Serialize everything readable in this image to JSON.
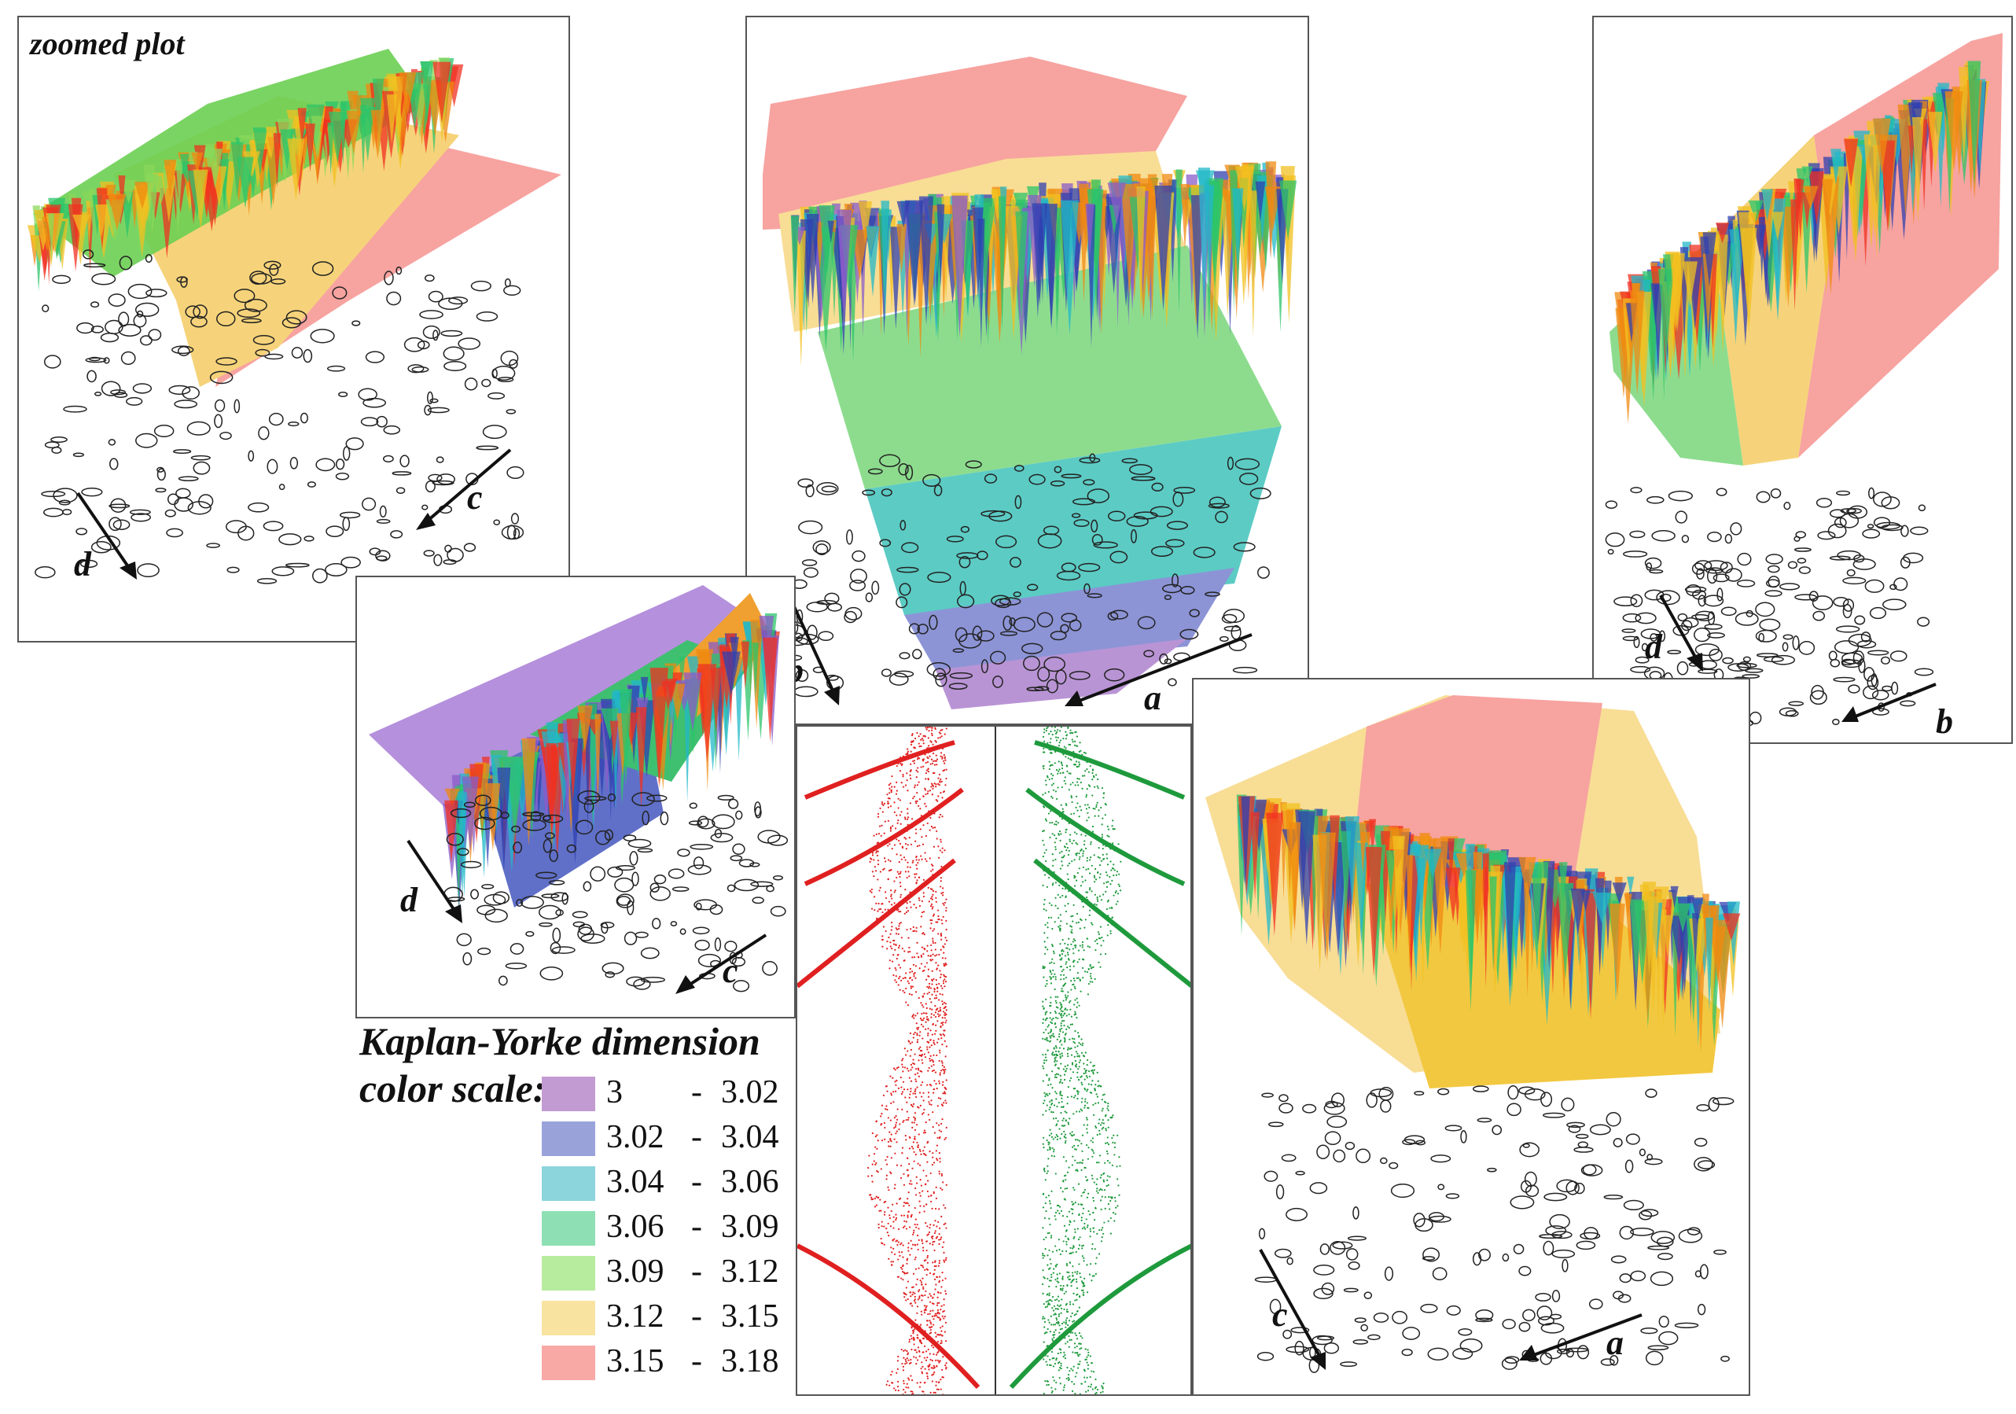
{
  "figure": {
    "panels": [
      {
        "id": "zoomed",
        "title": "zoomed plot",
        "axis_labels": [
          "d",
          "c"
        ]
      },
      {
        "id": "top-center",
        "title": "",
        "axis_labels": [
          "b",
          "a"
        ]
      },
      {
        "id": "top-right",
        "title": "",
        "axis_labels": [
          "d",
          "b"
        ]
      },
      {
        "id": "middle-left",
        "title": "",
        "axis_labels": [
          "d",
          "c"
        ]
      },
      {
        "id": "bottom-right",
        "title": "",
        "axis_labels": [
          "c",
          "a"
        ]
      }
    ]
  },
  "chart_data": {
    "type": "heatmap",
    "title": "Kaplan-Yorke dimension",
    "legend_title_line1": "Kaplan-Yorke dimension",
    "legend_title_line2": "color scale:",
    "color_scale": [
      {
        "low": "3",
        "high": "3.02",
        "color": "#c39bd3"
      },
      {
        "low": "3.02",
        "high": "3.04",
        "color": "#9aa3d9"
      },
      {
        "low": "3.04",
        "high": "3.06",
        "color": "#8cd5dc"
      },
      {
        "low": "3.06",
        "high": "3.09",
        "color": "#8ee0b4"
      },
      {
        "low": "3.09",
        "high": "3.12",
        "color": "#b7eb9e"
      },
      {
        "low": "3.12",
        "high": "3.15",
        "color": "#f9e3a0"
      },
      {
        "low": "3.15",
        "high": "3.18",
        "color": "#f8a9a6"
      }
    ],
    "surface_colors": {
      "purple": "#8a5cc9",
      "blue": "#3040b0",
      "cyan": "#22b8c8",
      "green": "#2cc46a",
      "lightgreen": "#8ad85a",
      "yellow": "#f2c020",
      "orange": "#f08a10",
      "red": "#f03020"
    },
    "bifurcation_diagrams": [
      {
        "name": "left",
        "color": "#e02020"
      },
      {
        "name": "right",
        "color": "#1e9a3c"
      }
    ]
  }
}
